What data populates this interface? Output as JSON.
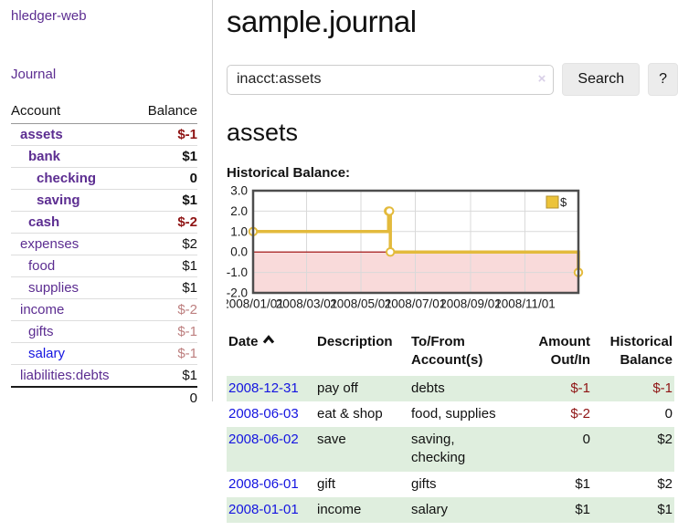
{
  "colors": {
    "link_purple": "#5c2d91",
    "link_blue": "#1414e0",
    "negative_strong": "#8f1414",
    "negative_soft": "#bd7f7f",
    "row_stripe_green": "#dfeede",
    "chart_line_gold": "#e3ba3c",
    "chart_negative_region": "#f9dada",
    "chart_zero_line": "#990000"
  },
  "sidebar": {
    "brand": "hledger-web",
    "nav_journal": "Journal",
    "accounts": {
      "header_account": "Account",
      "header_balance": "Balance",
      "rows": [
        {
          "name": "assets",
          "depth": 1,
          "bold": true,
          "balance": "$-1",
          "balance_tone": "neg"
        },
        {
          "name": "bank",
          "depth": 2,
          "bold": true,
          "balance": "$1",
          "balance_tone": "pos"
        },
        {
          "name": "checking",
          "depth": 3,
          "bold": true,
          "balance": "0",
          "balance_tone": "pos"
        },
        {
          "name": "saving",
          "depth": 3,
          "bold": true,
          "balance": "$1",
          "balance_tone": "pos"
        },
        {
          "name": "cash",
          "depth": 2,
          "bold": true,
          "balance": "$-2",
          "balance_tone": "neg"
        },
        {
          "name": "expenses",
          "depth": 1,
          "bold": false,
          "balance": "$2",
          "balance_tone": "pos"
        },
        {
          "name": "food",
          "depth": 2,
          "bold": false,
          "balance": "$1",
          "balance_tone": "pos"
        },
        {
          "name": "supplies",
          "depth": 2,
          "bold": false,
          "balance": "$1",
          "balance_tone": "pos"
        },
        {
          "name": "income",
          "depth": 1,
          "bold": false,
          "balance": "$-2",
          "balance_tone": "neg-soft"
        },
        {
          "name": "gifts",
          "depth": 2,
          "bold": false,
          "balance": "$-1",
          "balance_tone": "neg-soft"
        },
        {
          "name": "salary",
          "depth": 2,
          "bold": false,
          "balance": "$-1",
          "balance_tone": "neg-soft",
          "link_tone": "blue"
        },
        {
          "name": "liabilities:debts",
          "depth": 1,
          "bold": false,
          "balance": "$1",
          "balance_tone": "pos"
        }
      ],
      "total": "0"
    }
  },
  "main": {
    "title": "sample.journal",
    "search": {
      "value": "inacct:assets",
      "clear_label": "×",
      "search_button": "Search",
      "help_button": "?"
    },
    "account_heading": "assets",
    "chart_heading": "Historical Balance:"
  },
  "chart_data": {
    "type": "line",
    "step": true,
    "title": "Historical Balance:",
    "x_range": [
      "2008-01-01",
      "2008-12-31"
    ],
    "ylim": [
      -2,
      3
    ],
    "y_ticks": [
      3.0,
      2.0,
      1.0,
      0.0,
      -1.0,
      -2.0
    ],
    "x_ticks": [
      "2008/01/01",
      "2008/03/01",
      "2008/05/01",
      "2008/07/01",
      "2008/09/01",
      "2008/11/01"
    ],
    "series": [
      {
        "name": "$",
        "color": "#e3ba3c",
        "points": [
          [
            "2008-01-01",
            1
          ],
          [
            "2008-06-01",
            2
          ],
          [
            "2008-06-02",
            2
          ],
          [
            "2008-06-03",
            0
          ],
          [
            "2008-12-31",
            -1
          ]
        ]
      }
    ],
    "legend": [
      {
        "label": "$",
        "color": "#ecc339"
      }
    ],
    "legend_position": "top-right",
    "grid": true,
    "negative_region_color": "#f9dada",
    "zero_line_color": "#990000"
  },
  "register": {
    "headers": {
      "date": "Date",
      "description": "Description",
      "accounts": "To/From Account(s)",
      "amount": "Amount Out/In",
      "balance": "Historical Balance"
    },
    "rows": [
      {
        "date": "2008-12-31",
        "description": "pay off",
        "accounts": "debts",
        "amount": "$-1",
        "amount_negative": true,
        "balance": "$-1",
        "balance_negative": true
      },
      {
        "date": "2008-06-03",
        "description": "eat & shop",
        "accounts": "food, supplies",
        "amount": "$-2",
        "amount_negative": true,
        "balance": "0",
        "balance_negative": false
      },
      {
        "date": "2008-06-02",
        "description": "save",
        "accounts": "saving, checking",
        "amount": "0",
        "amount_negative": false,
        "balance": "$2",
        "balance_negative": false
      },
      {
        "date": "2008-06-01",
        "description": "gift",
        "accounts": "gifts",
        "amount": "$1",
        "amount_negative": false,
        "balance": "$2",
        "balance_negative": false
      },
      {
        "date": "2008-01-01",
        "description": "income",
        "accounts": "salary",
        "amount": "$1",
        "amount_negative": false,
        "balance": "$1",
        "balance_negative": false
      }
    ]
  }
}
